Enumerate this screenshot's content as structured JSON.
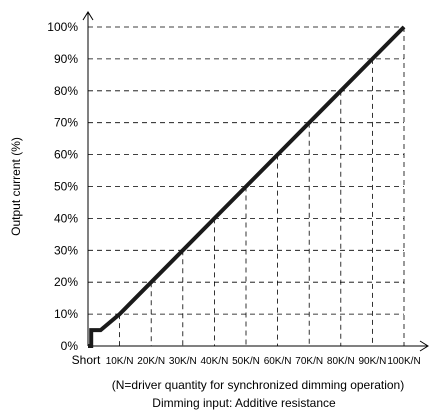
{
  "chart_data": {
    "type": "line",
    "title": "",
    "ylabel": "Output current (%)",
    "xlabel": "Dimming input: Additive resistance",
    "note": "(N=driver quantity for synchronized dimming operation)",
    "categories": [
      "Short",
      "10K/N",
      "20K/N",
      "30K/N",
      "40K/N",
      "50K/N",
      "60K/N",
      "70K/N",
      "80K/N",
      "90K/N",
      "100K/N"
    ],
    "x_values": [
      0,
      10,
      20,
      30,
      40,
      50,
      60,
      70,
      80,
      90,
      100
    ],
    "ytick_labels": [
      "0%",
      "10%",
      "20%",
      "30%",
      "40%",
      "50%",
      "60%",
      "70%",
      "80%",
      "90%",
      "100%"
    ],
    "ytick_values": [
      0,
      10,
      20,
      30,
      40,
      50,
      60,
      70,
      80,
      90,
      100
    ],
    "ylim": [
      0,
      100
    ],
    "xlim": [
      0,
      100
    ],
    "grid": "dashed",
    "series": [
      {
        "x": [
          0,
          1,
          1,
          4,
          10,
          20,
          30,
          40,
          50,
          60,
          70,
          80,
          90,
          100
        ],
        "y": [
          0,
          0,
          5,
          5,
          10,
          20,
          30,
          40,
          50,
          60,
          70,
          80,
          90,
          100
        ]
      }
    ],
    "line_color": "#1a1a1a"
  }
}
